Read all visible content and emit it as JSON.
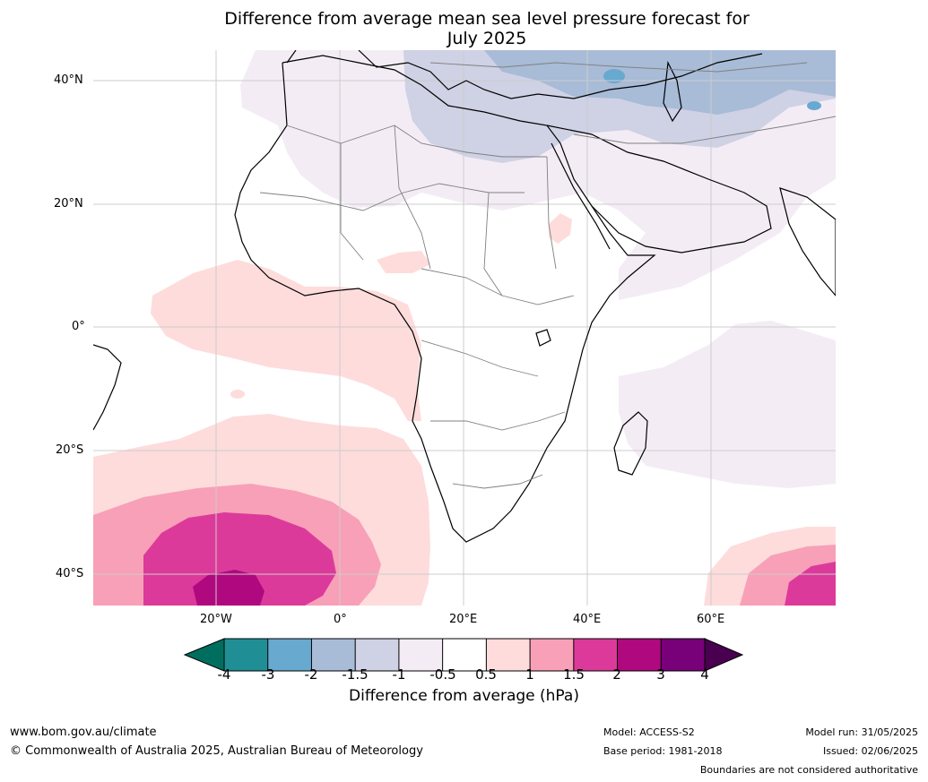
{
  "title_line1": "Difference from average mean sea level pressure forecast for",
  "title_line2": "July 2025",
  "latitude_labels": [
    "40°N",
    "20°N",
    "0°",
    "20°S",
    "40°S"
  ],
  "longitude_labels": [
    "20°W",
    "0°",
    "20°E",
    "40°E",
    "60°E"
  ],
  "colorbar": {
    "title": "Difference from average (hPa)",
    "ticks": [
      "-4",
      "-3",
      "-2",
      "-1.5",
      "-1",
      "-0.5",
      "0.5",
      "1",
      "1.5",
      "2",
      "3",
      "4"
    ],
    "colors": [
      "#1f8f95",
      "#68a9d0",
      "#a8bbd7",
      "#cfd1e5",
      "#f3ecf5",
      "#ffffff",
      "#fedcdc",
      "#f7a0b8",
      "#dc3a9a",
      "#b0087e",
      "#780078"
    ],
    "under_color": "#006e5e",
    "over_color": "#4a0050"
  },
  "footer": {
    "website": "www.bom.gov.au/climate",
    "copyright": "© Commonwealth of Australia 2025, Australian Bureau of Meteorology",
    "model": "Model: ACCESS-S2",
    "base_period": "Base period: 1981-2018",
    "model_run": "Model run: 31/05/2025",
    "issued": "Issued: 02/06/2025",
    "disclaimer": "Boundaries are not considered authoritative"
  }
}
